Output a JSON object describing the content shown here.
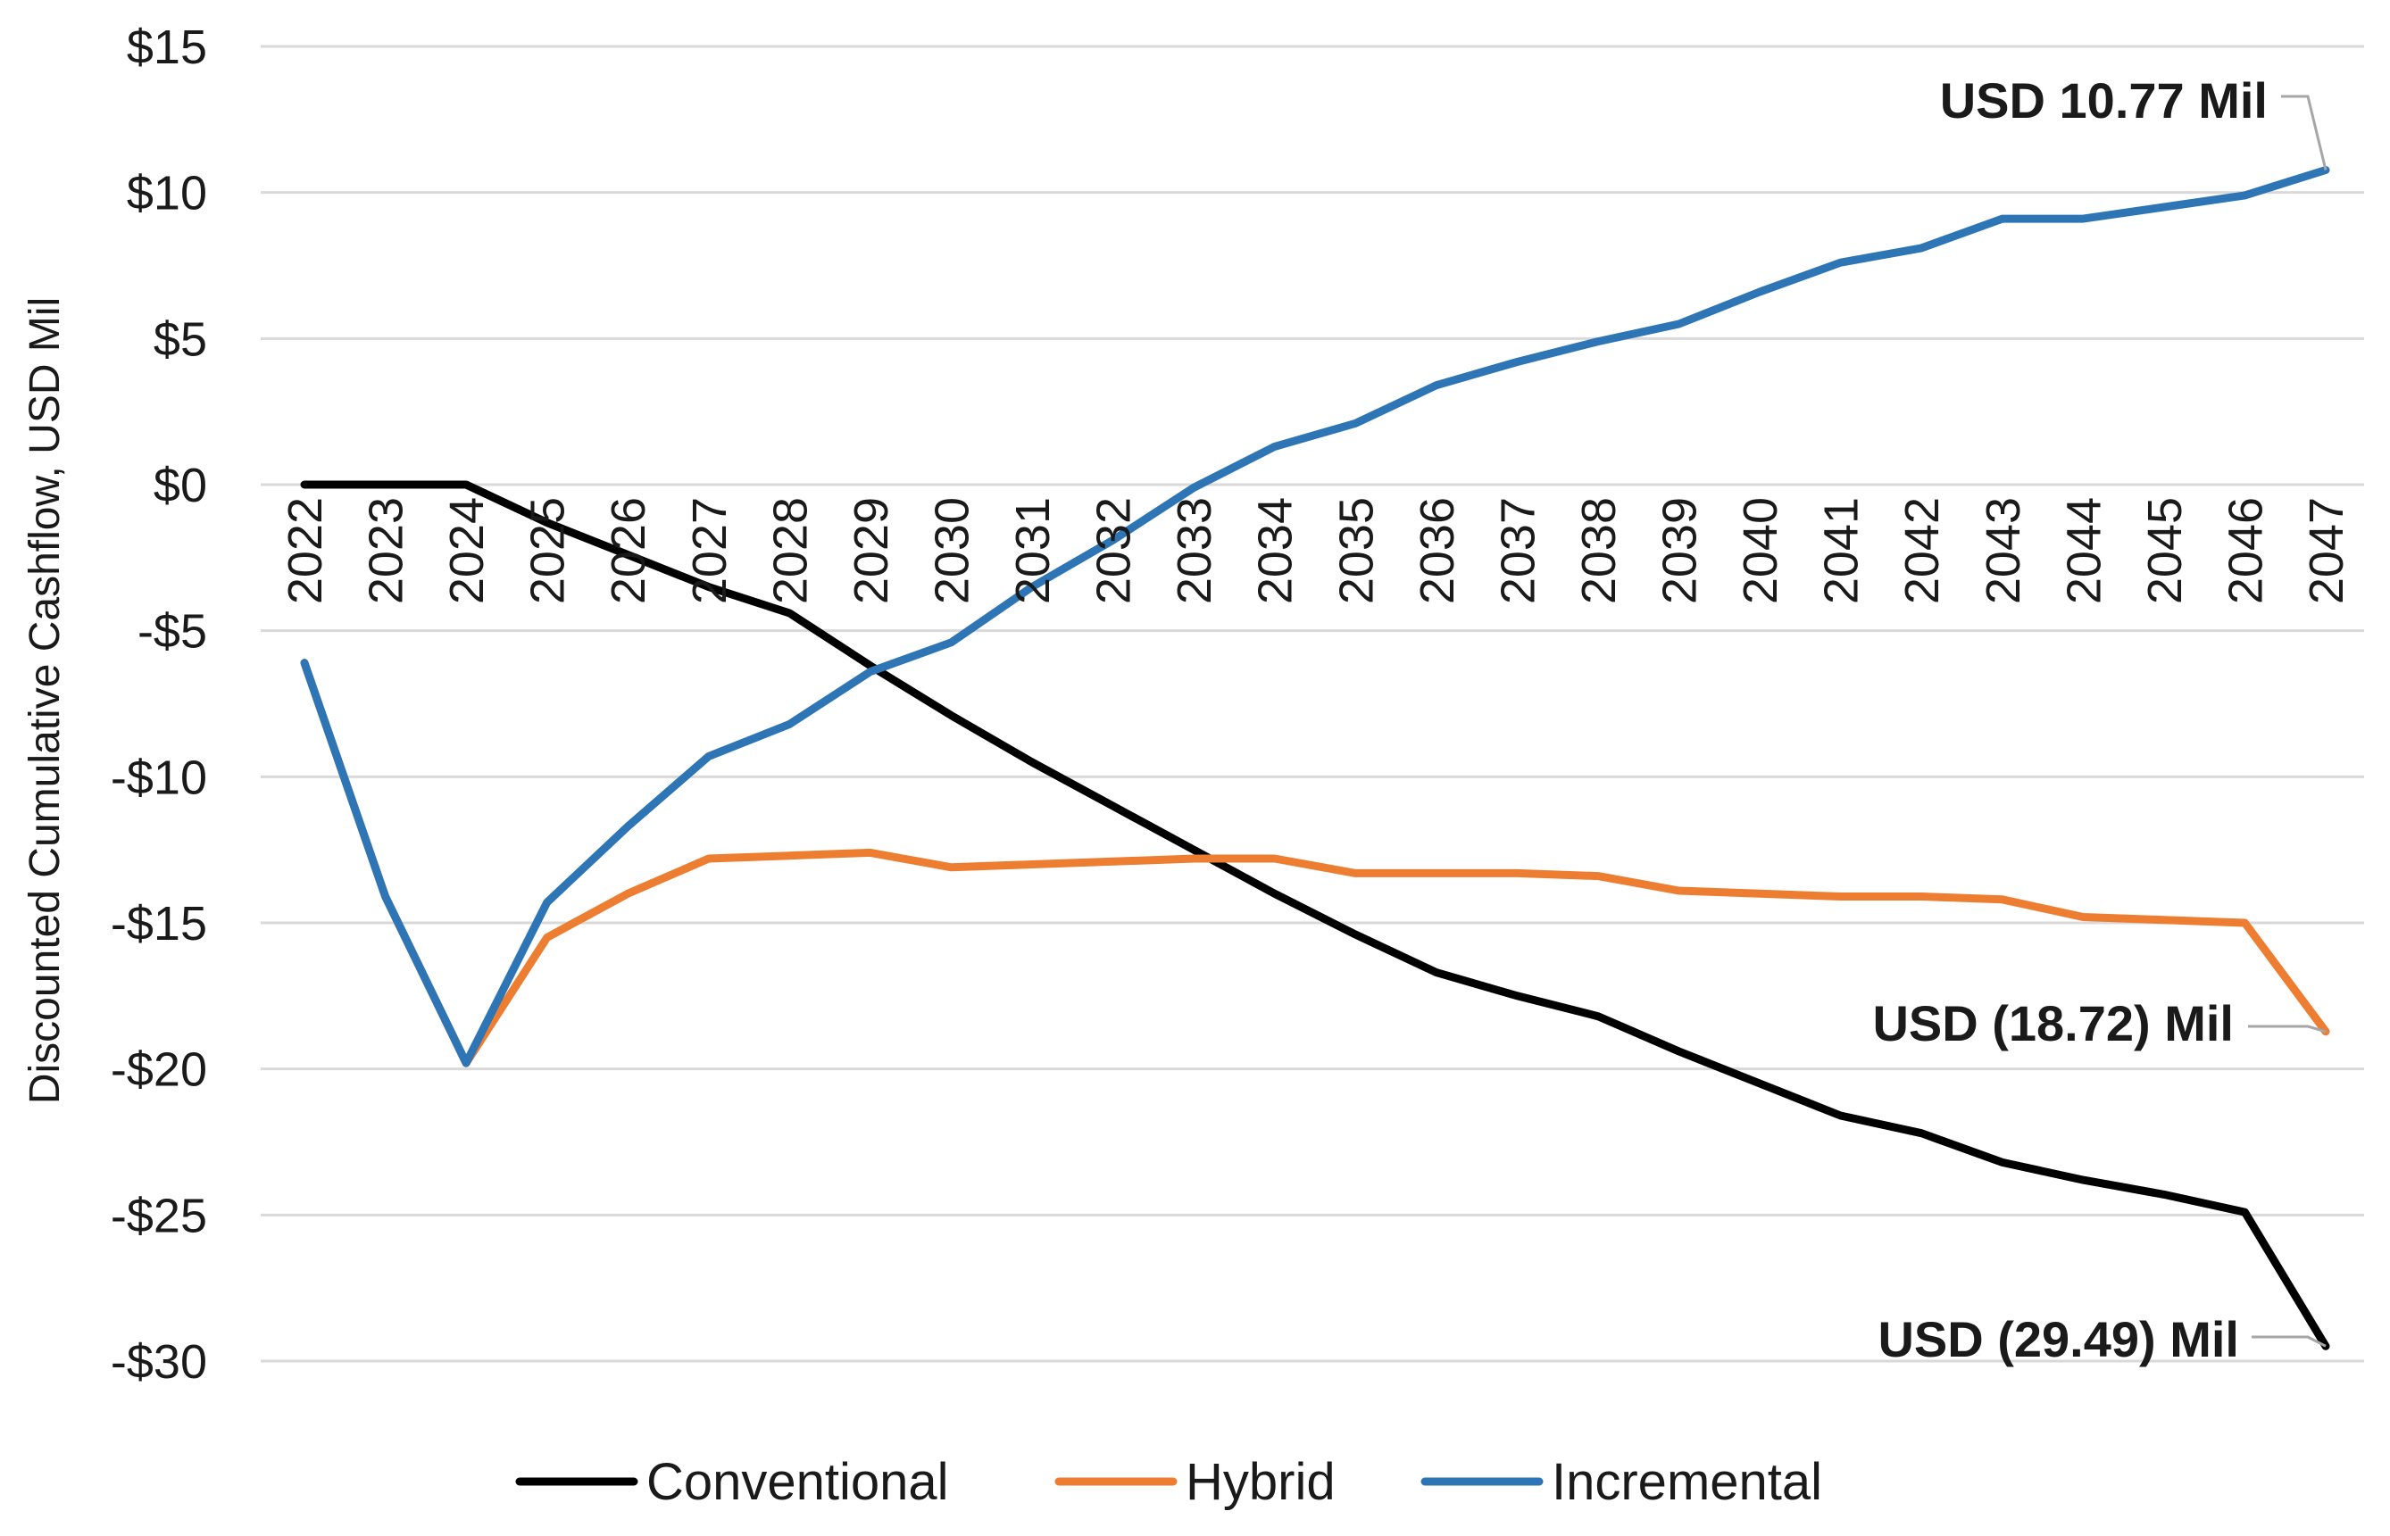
{
  "chart_data": {
    "type": "line",
    "title": "",
    "xlabel": "",
    "ylabel": "Discounted Cumulative Cashflow, USD Mil",
    "ylim": [
      -30,
      15
    ],
    "yticks": [
      15,
      10,
      5,
      0,
      -5,
      -10,
      -15,
      -20,
      -25,
      -30
    ],
    "ytick_labels": [
      "$15",
      "$10",
      "$5",
      "$0",
      "-$5",
      "-$10",
      "-$15",
      "-$20",
      "-$25",
      "-$30"
    ],
    "grid": true,
    "legend_position": "bottom",
    "categories": [
      "2022",
      "2023",
      "2024",
      "2025",
      "2026",
      "2027",
      "2028",
      "2029",
      "2030",
      "2031",
      "2032",
      "2033",
      "2034",
      "2035",
      "2036",
      "2037",
      "2038",
      "2039",
      "2040",
      "2041",
      "2042",
      "2043",
      "2044",
      "2045",
      "2046",
      "2047"
    ],
    "series": [
      {
        "name": "Conventional",
        "color": "#000000",
        "values": [
          0,
          0,
          0,
          -1.3,
          -2.4,
          -3.5,
          -4.4,
          -6.2,
          -7.9,
          -9.5,
          -11.0,
          -12.5,
          -14.0,
          -15.4,
          -16.7,
          -17.5,
          -18.2,
          -19.4,
          -20.5,
          -21.6,
          -22.2,
          -23.2,
          -23.8,
          -24.3,
          -24.9,
          -29.49
        ]
      },
      {
        "name": "Hybrid",
        "color": "#ED7D31",
        "values": [
          -6.1,
          -14.1,
          -19.8,
          -15.5,
          -14.0,
          -12.8,
          -12.7,
          -12.6,
          -13.1,
          -13.0,
          -12.9,
          -12.8,
          -12.8,
          -13.3,
          -13.3,
          -13.3,
          -13.4,
          -13.9,
          -14.0,
          -14.1,
          -14.1,
          -14.2,
          -14.8,
          -14.9,
          -15.0,
          -18.72
        ]
      },
      {
        "name": "Incremental",
        "color": "#2E75B6",
        "values": [
          -6.1,
          -14.1,
          -19.8,
          -14.3,
          -11.7,
          -9.3,
          -8.2,
          -6.4,
          -5.4,
          -3.5,
          -1.9,
          -0.1,
          1.3,
          2.1,
          3.4,
          4.2,
          4.9,
          5.5,
          6.6,
          7.6,
          8.1,
          9.1,
          9.1,
          9.5,
          9.9,
          10.77
        ]
      }
    ],
    "annotations": [
      {
        "text": "USD 10.77 Mil",
        "series": "Incremental",
        "x": "2047",
        "y": 10.77
      },
      {
        "text": "USD (18.72) Mil",
        "series": "Hybrid",
        "x": "2047",
        "y": -18.72
      },
      {
        "text": "USD (29.49) Mil",
        "series": "Conventional",
        "x": "2047",
        "y": -29.49
      }
    ]
  }
}
